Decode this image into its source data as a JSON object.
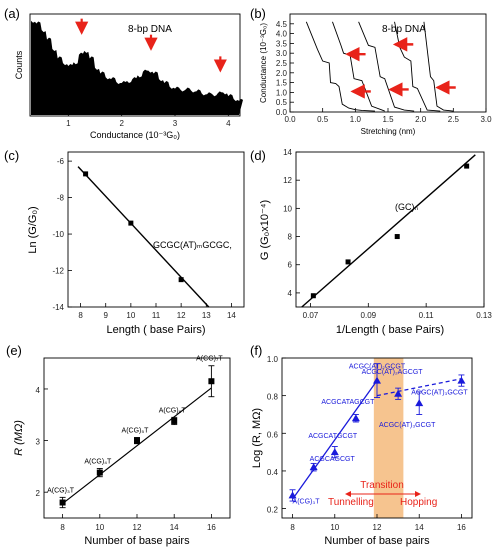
{
  "panels": {
    "a": {
      "letter": "(a)",
      "tag": "8-bp DNA",
      "xlabel": "Conductance (10⁻³G₀)",
      "ylabel": "Counts",
      "xticks": [
        "1",
        "2",
        "3",
        "4"
      ]
    },
    "b": {
      "letter": "(b)",
      "tag": "8-bp DNA",
      "xlabel": "Stretching (nm)",
      "ylabel": "Conductance (10⁻³G₀)",
      "xticks": [
        "0.0",
        "0.5",
        "1.0",
        "1.5",
        "2.0",
        "2.5",
        "3.0"
      ],
      "yticks": [
        "0.0",
        "0.5",
        "1.0",
        "1.5",
        "2.0",
        "2.5",
        "3.0",
        "3.5",
        "4.0",
        "4.5"
      ]
    },
    "c": {
      "letter": "(c)",
      "xlabel": "Length ( base Pairs)",
      "ylabel": "Ln (G/G₀)",
      "annotation": "GCGC(AT)ₘGCGC,",
      "xticks": [
        "8",
        "9",
        "10",
        "11",
        "12",
        "13",
        "14"
      ],
      "yticks": [
        "-6",
        "-8",
        "-10",
        "-12",
        "-14"
      ]
    },
    "d": {
      "letter": "(d)",
      "xlabel": "1/Length ( base Pairs)",
      "ylabel": "G (G₀x10⁻⁴)",
      "annotation": "(GC)ₙ",
      "xticks": [
        "0.07",
        "0.09",
        "0.11",
        "0.13"
      ],
      "yticks": [
        "4",
        "6",
        "8",
        "10",
        "12",
        "14"
      ]
    },
    "e": {
      "letter": "(e)",
      "xlabel": "Number of base pairs",
      "ylabel": "R (MΩ)",
      "xticks": [
        "8",
        "10",
        "12",
        "14",
        "16"
      ],
      "yticks": [
        "2",
        "3",
        "4"
      ]
    },
    "f": {
      "letter": "(f)",
      "xlabel": "Number of base pairs",
      "ylabel": "Log (R, MΩ)",
      "xticks": [
        "8",
        "10",
        "12",
        "14",
        "16"
      ],
      "yticks": [
        "0.2",
        "0.4",
        "0.6",
        "0.8",
        "1.0"
      ],
      "transition": "Transition",
      "tunnelling": "Tunnelling",
      "hopping": "Hopping"
    }
  },
  "colors": {
    "data_blue": "#1a1adb",
    "regime_red": "#e8231a",
    "transition_band": "#f6c48f",
    "arrow_red": "#e8231a"
  },
  "chart_data": [
    {
      "panel": "a",
      "type": "area",
      "x": [
        0.3,
        0.4,
        0.5,
        0.6,
        0.7,
        0.8,
        0.9,
        1.0,
        1.1,
        1.2,
        1.3,
        1.4,
        1.5,
        1.6,
        1.7,
        1.8,
        1.9,
        2.0,
        2.1,
        2.2,
        2.3,
        2.4,
        2.5,
        2.6,
        2.7,
        2.8,
        2.9,
        3.0,
        3.1,
        3.2,
        3.3,
        3.4,
        3.5,
        3.6,
        3.7,
        3.8,
        3.9,
        4.0,
        4.1,
        4.2
      ],
      "y": [
        1.0,
        0.97,
        0.9,
        0.8,
        0.7,
        0.6,
        0.55,
        0.52,
        0.56,
        0.64,
        0.68,
        0.6,
        0.5,
        0.44,
        0.4,
        0.38,
        0.35,
        0.34,
        0.36,
        0.38,
        0.42,
        0.46,
        0.47,
        0.44,
        0.38,
        0.34,
        0.3,
        0.28,
        0.27,
        0.27,
        0.26,
        0.25,
        0.23,
        0.22,
        0.22,
        0.23,
        0.24,
        0.2,
        0.17,
        0.15
      ],
      "peaks": [
        1.25,
        2.55,
        3.85
      ],
      "xlim": [
        0.3,
        4.2
      ]
    },
    {
      "panel": "b",
      "type": "line",
      "xlim": [
        0,
        3.0
      ],
      "ylim": [
        0,
        5.0
      ],
      "series": [
        {
          "x": [
            0.25,
            0.42,
            0.5,
            0.6,
            0.62,
            0.7,
            0.75,
            0.8,
            0.9,
            1.0,
            1.1,
            1.3
          ],
          "y": [
            4.6,
            3.2,
            2.6,
            2.5,
            1.5,
            1.45,
            1.3,
            0.4,
            0.2,
            0.12,
            0.08,
            0.05
          ]
        },
        {
          "x": [
            0.65,
            0.78,
            0.82,
            0.92,
            0.98,
            1.1,
            1.25,
            1.45
          ],
          "y": [
            4.6,
            3.4,
            3.0,
            2.9,
            1.7,
            1.6,
            0.3,
            0.05
          ]
        },
        {
          "x": [
            1.05,
            1.15,
            1.2,
            1.3,
            1.38,
            1.45,
            1.6,
            1.75,
            1.9
          ],
          "y": [
            4.6,
            3.8,
            3.4,
            3.3,
            1.8,
            1.7,
            0.25,
            0.1,
            0.05
          ]
        },
        {
          "x": [
            1.6,
            1.68,
            1.75,
            1.85,
            1.88,
            1.95,
            2.1,
            2.3
          ],
          "y": [
            4.6,
            3.3,
            2.8,
            2.6,
            1.3,
            1.2,
            0.1,
            0.05
          ]
        },
        {
          "x": [
            2.05,
            2.1,
            2.15,
            2.2,
            2.25,
            2.35,
            2.5
          ],
          "y": [
            4.6,
            3.2,
            1.8,
            1.6,
            0.3,
            0.1,
            0.05
          ]
        }
      ],
      "arrows": [
        {
          "x": 0.82,
          "y": 2.95
        },
        {
          "x": 0.9,
          "y": 1.05
        },
        {
          "x": 1.55,
          "y": 3.45
        },
        {
          "x": 1.48,
          "y": 1.15
        },
        {
          "x": 2.2,
          "y": 1.25
        }
      ]
    },
    {
      "panel": "c",
      "type": "scatter",
      "xlim": [
        7.5,
        14.5
      ],
      "ylim": [
        -14,
        -5.5
      ],
      "x": [
        8.2,
        10,
        12
      ],
      "y": [
        -6.7,
        -9.4,
        -12.5
      ],
      "fit": {
        "x": [
          7.9,
          13.1
        ],
        "y": [
          -6.3,
          -14.0
        ]
      }
    },
    {
      "panel": "d",
      "type": "scatter",
      "xlim": [
        0.065,
        0.13
      ],
      "ylim": [
        3,
        14
      ],
      "x": [
        0.071,
        0.083,
        0.1,
        0.124
      ],
      "y": [
        3.8,
        6.2,
        8.0,
        13.0
      ],
      "fit": {
        "x": [
          0.067,
          0.127
        ],
        "y": [
          3.0,
          13.8
        ]
      }
    },
    {
      "panel": "e",
      "type": "scatter",
      "xlim": [
        7,
        17
      ],
      "ylim": [
        1.5,
        4.6
      ],
      "x": [
        8,
        10,
        12,
        14,
        16
      ],
      "y": [
        1.8,
        2.38,
        3.0,
        3.38,
        4.15
      ],
      "err": [
        0.1,
        0.08,
        0.06,
        0.07,
        0.3
      ],
      "labels": [
        "A(CG)₃T",
        "A(CG)₄T",
        "A(CG)₅T",
        "A(CG)₆T",
        "A(CG)₇T"
      ],
      "fit": {
        "x": [
          8,
          16
        ],
        "y": [
          1.78,
          4.02
        ]
      }
    },
    {
      "panel": "f",
      "type": "scatter",
      "xlim": [
        7.5,
        16.5
      ],
      "ylim": [
        0.15,
        1.0
      ],
      "transition_band": [
        11.85,
        13.25
      ],
      "x": [
        8,
        9,
        10,
        11,
        12,
        13,
        14,
        16
      ],
      "y": [
        0.27,
        0.42,
        0.5,
        0.68,
        0.88,
        0.81,
        0.76,
        0.88
      ],
      "err": [
        0.03,
        0.02,
        0.03,
        0.02,
        0.09,
        0.03,
        0.06,
        0.03
      ],
      "labels": [
        "A(CG)₃T",
        "ACGCAGCGT",
        "ACGCATGCGT",
        "ACGCATAGCGT",
        "ACGC(AT)₂GCGT",
        "ACGC(AT)₂AGCGT",
        "ACGC(AT)₃GCGT",
        "ACGC(AT)₃GCGT"
      ],
      "fit_tunnelling": {
        "x": [
          8,
          12
        ],
        "y": [
          0.25,
          0.88
        ]
      },
      "fit_hopping": {
        "x": [
          12,
          16
        ],
        "y": [
          0.8,
          0.89
        ]
      }
    }
  ]
}
